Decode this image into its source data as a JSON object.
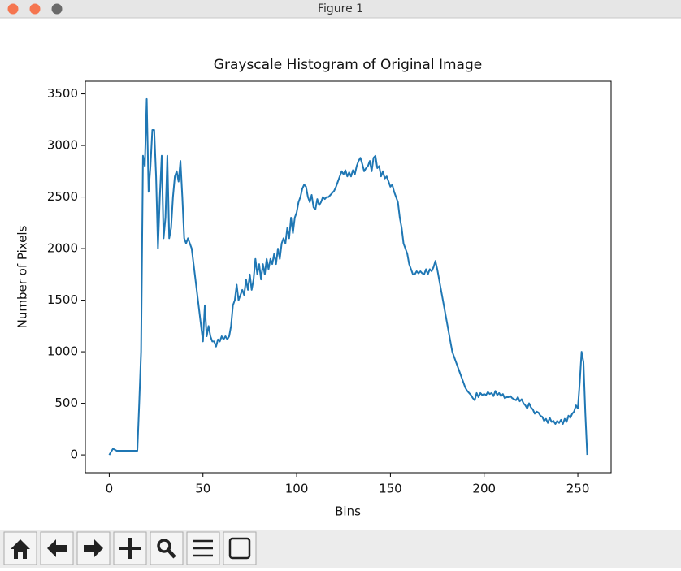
{
  "window": {
    "title": "Figure 1"
  },
  "chart_data": {
    "type": "line",
    "title": "Grayscale Histogram of Original Image",
    "x_label": "Bins",
    "y_label": "Number of Pixels",
    "color": "#1f77b4",
    "x": [
      0,
      1,
      2,
      3,
      4,
      5,
      6,
      7,
      8,
      9,
      10,
      11,
      12,
      13,
      14,
      15,
      16,
      17,
      18,
      19,
      20,
      21,
      22,
      23,
      24,
      25,
      26,
      27,
      28,
      29,
      30,
      31,
      32,
      33,
      34,
      35,
      36,
      37,
      38,
      39,
      40,
      41,
      42,
      43,
      44,
      45,
      46,
      47,
      48,
      49,
      50,
      51,
      52,
      53,
      54,
      55,
      56,
      57,
      58,
      59,
      60,
      61,
      62,
      63,
      64,
      65,
      66,
      67,
      68,
      69,
      70,
      71,
      72,
      73,
      74,
      75,
      76,
      77,
      78,
      79,
      80,
      81,
      82,
      83,
      84,
      85,
      86,
      87,
      88,
      89,
      90,
      91,
      92,
      93,
      94,
      95,
      96,
      97,
      98,
      99,
      100,
      101,
      102,
      103,
      104,
      105,
      106,
      107,
      108,
      109,
      110,
      111,
      112,
      113,
      114,
      115,
      116,
      117,
      118,
      119,
      120,
      121,
      122,
      123,
      124,
      125,
      126,
      127,
      128,
      129,
      130,
      131,
      132,
      133,
      134,
      135,
      136,
      137,
      138,
      139,
      140,
      141,
      142,
      143,
      144,
      145,
      146,
      147,
      148,
      149,
      150,
      151,
      152,
      153,
      154,
      155,
      156,
      157,
      158,
      159,
      160,
      161,
      162,
      163,
      164,
      165,
      166,
      167,
      168,
      169,
      170,
      171,
      172,
      173,
      174,
      175,
      176,
      177,
      178,
      179,
      180,
      181,
      182,
      183,
      184,
      185,
      186,
      187,
      188,
      189,
      190,
      191,
      192,
      193,
      194,
      195,
      196,
      197,
      198,
      199,
      200,
      201,
      202,
      203,
      204,
      205,
      206,
      207,
      208,
      209,
      210,
      211,
      212,
      213,
      214,
      215,
      216,
      217,
      218,
      219,
      220,
      221,
      222,
      223,
      224,
      225,
      226,
      227,
      228,
      229,
      230,
      231,
      232,
      233,
      234,
      235,
      236,
      237,
      238,
      239,
      240,
      241,
      242,
      243,
      244,
      245,
      246,
      247,
      248,
      249,
      250,
      251,
      252,
      253,
      254,
      255
    ],
    "values": [
      0,
      30,
      60,
      50,
      40,
      40,
      40,
      40,
      40,
      40,
      40,
      40,
      40,
      40,
      40,
      40,
      500,
      1000,
      2900,
      2800,
      3450,
      2550,
      2800,
      3150,
      3150,
      2700,
      2000,
      2500,
      2900,
      2100,
      2300,
      2900,
      2100,
      2200,
      2500,
      2700,
      2750,
      2650,
      2850,
      2500,
      2100,
      2050,
      2100,
      2050,
      2000,
      1850,
      1700,
      1550,
      1400,
      1250,
      1100,
      1450,
      1150,
      1250,
      1150,
      1100,
      1100,
      1050,
      1120,
      1100,
      1150,
      1120,
      1150,
      1120,
      1150,
      1250,
      1450,
      1500,
      1650,
      1500,
      1550,
      1600,
      1550,
      1700,
      1600,
      1750,
      1600,
      1700,
      1900,
      1750,
      1850,
      1700,
      1850,
      1750,
      1900,
      1800,
      1900,
      1850,
      1950,
      1850,
      2000,
      1900,
      2050,
      2100,
      2050,
      2200,
      2100,
      2300,
      2150,
      2300,
      2350,
      2450,
      2500,
      2580,
      2620,
      2600,
      2500,
      2450,
      2520,
      2400,
      2380,
      2480,
      2420,
      2450,
      2500,
      2480,
      2500,
      2500,
      2520,
      2540,
      2560,
      2600,
      2650,
      2700,
      2750,
      2720,
      2760,
      2700,
      2740,
      2700,
      2760,
      2720,
      2800,
      2850,
      2880,
      2820,
      2750,
      2780,
      2800,
      2850,
      2750,
      2880,
      2900,
      2780,
      2800,
      2700,
      2750,
      2680,
      2700,
      2650,
      2600,
      2620,
      2550,
      2500,
      2450,
      2300,
      2200,
      2050,
      2000,
      1950,
      1850,
      1800,
      1750,
      1750,
      1780,
      1760,
      1780,
      1760,
      1750,
      1800,
      1750,
      1800,
      1780,
      1820,
      1880,
      1800,
      1700,
      1600,
      1500,
      1400,
      1300,
      1200,
      1100,
      1000,
      950,
      900,
      850,
      800,
      750,
      700,
      650,
      620,
      600,
      580,
      550,
      530,
      600,
      560,
      600,
      580,
      590,
      580,
      610,
      590,
      600,
      570,
      620,
      580,
      600,
      570,
      590,
      550,
      560,
      560,
      570,
      550,
      540,
      530,
      560,
      520,
      540,
      500,
      480,
      450,
      500,
      460,
      440,
      400,
      420,
      410,
      380,
      370,
      330,
      350,
      310,
      360,
      320,
      330,
      300,
      330,
      310,
      340,
      300,
      350,
      320,
      380,
      360,
      400,
      420,
      480,
      450,
      700,
      1000,
      900,
      400,
      0
    ],
    "xlim": [
      -12.75,
      267.75
    ],
    "ylim": [
      -172.5,
      3622.5
    ],
    "xticks": [
      0,
      50,
      100,
      150,
      200,
      250
    ],
    "yticks": [
      0,
      500,
      1000,
      1500,
      2000,
      2500,
      3000,
      3500
    ]
  }
}
